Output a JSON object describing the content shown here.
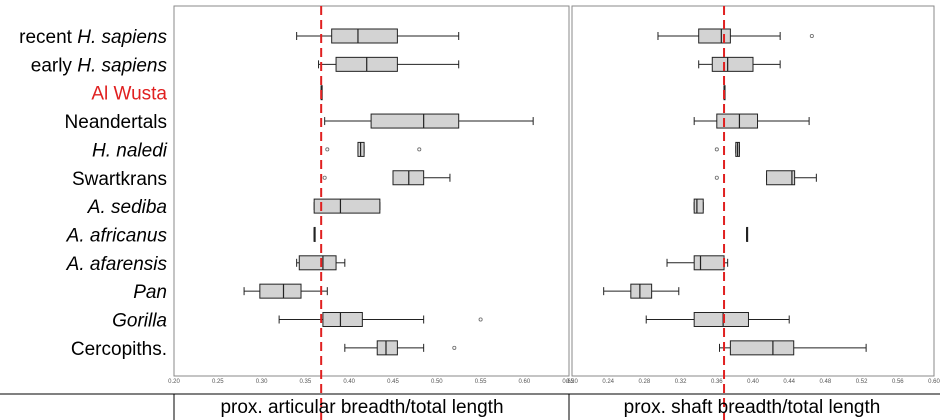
{
  "groups": [
    {
      "label": "recent H. sapiens",
      "parts": [
        {
          "t": "recent ",
          "i": false
        },
        {
          "t": "H. sapiens",
          "i": true
        }
      ],
      "color": "#000000"
    },
    {
      "label": "early H. sapiens",
      "parts": [
        {
          "t": "early ",
          "i": false
        },
        {
          "t": "H. sapiens",
          "i": true
        }
      ],
      "color": "#000000"
    },
    {
      "label": "Al Wusta",
      "parts": [
        {
          "t": "Al Wusta",
          "i": false
        }
      ],
      "color": "#e02020"
    },
    {
      "label": "Neandertals",
      "parts": [
        {
          "t": "Neandertals",
          "i": false
        }
      ],
      "color": "#000000"
    },
    {
      "label": "H. naledi",
      "parts": [
        {
          "t": "H. naledi",
          "i": true
        }
      ],
      "color": "#000000"
    },
    {
      "label": "Swartkrans",
      "parts": [
        {
          "t": "Swartkrans",
          "i": false
        }
      ],
      "color": "#000000"
    },
    {
      "label": "A. sediba",
      "parts": [
        {
          "t": "A. sediba",
          "i": true
        }
      ],
      "color": "#000000"
    },
    {
      "label": "A. africanus",
      "parts": [
        {
          "t": "A. africanus",
          "i": true
        }
      ],
      "color": "#000000"
    },
    {
      "label": "A. afarensis",
      "parts": [
        {
          "t": "A. afarensis",
          "i": true
        }
      ],
      "color": "#000000"
    },
    {
      "label": "Pan",
      "parts": [
        {
          "t": "Pan",
          "i": true
        }
      ],
      "color": "#000000"
    },
    {
      "label": "Gorilla",
      "parts": [
        {
          "t": "Gorilla",
          "i": true
        }
      ],
      "color": "#000000"
    },
    {
      "label": "Cercopiths.",
      "parts": [
        {
          "t": "Cercopiths.",
          "i": false
        }
      ],
      "color": "#000000"
    }
  ],
  "chart_data": [
    {
      "type": "box",
      "xlabel": "prox. articular breadth/total length",
      "xlim": [
        0.2,
        0.7
      ],
      "ticks": [
        "0.20",
        "0.25",
        "0.30",
        "0.35",
        "0.40",
        "0.45",
        "0.50",
        "0.55",
        "0.60",
        "0.65"
      ],
      "tick_values": [
        0.2,
        0.25,
        0.3,
        0.35,
        0.4,
        0.45,
        0.5,
        0.55,
        0.6,
        0.65
      ],
      "reference_line": {
        "x": 0.368,
        "color": "#e02020",
        "style": "dashed"
      },
      "series": [
        {
          "name": "recent H. sapiens",
          "whislo": 0.34,
          "q1": 0.38,
          "med": 0.41,
          "q3": 0.455,
          "whishi": 0.525,
          "fliers": []
        },
        {
          "name": "early H. sapiens",
          "whislo": 0.365,
          "q1": 0.385,
          "med": 0.42,
          "q3": 0.455,
          "whishi": 0.525,
          "fliers": []
        },
        {
          "name": "Al Wusta",
          "whislo": 0.368,
          "q1": 0.368,
          "med": 0.368,
          "q3": 0.368,
          "whishi": 0.368,
          "fliers": []
        },
        {
          "name": "Neandertals",
          "whislo": 0.372,
          "q1": 0.425,
          "med": 0.485,
          "q3": 0.525,
          "whishi": 0.61,
          "fliers": []
        },
        {
          "name": "H. naledi",
          "whislo": 0.41,
          "q1": 0.41,
          "med": 0.413,
          "q3": 0.417,
          "whishi": 0.417,
          "fliers": [
            0.375,
            0.48
          ]
        },
        {
          "name": "Swartkrans",
          "whislo": 0.45,
          "q1": 0.45,
          "med": 0.468,
          "q3": 0.485,
          "whishi": 0.515,
          "fliers": [
            0.372
          ]
        },
        {
          "name": "A. sediba",
          "whislo": 0.36,
          "q1": 0.36,
          "med": 0.39,
          "q3": 0.435,
          "whishi": 0.435,
          "fliers": []
        },
        {
          "name": "A. africanus",
          "whislo": 0.36,
          "q1": 0.36,
          "med": 0.36,
          "q3": 0.36,
          "whishi": 0.36,
          "fliers": []
        },
        {
          "name": "A. afarensis",
          "whislo": 0.34,
          "q1": 0.343,
          "med": 0.37,
          "q3": 0.385,
          "whishi": 0.395,
          "fliers": []
        },
        {
          "name": "Pan",
          "whislo": 0.28,
          "q1": 0.298,
          "med": 0.325,
          "q3": 0.345,
          "whishi": 0.375,
          "fliers": []
        },
        {
          "name": "Gorilla",
          "whislo": 0.32,
          "q1": 0.37,
          "med": 0.39,
          "q3": 0.415,
          "whishi": 0.485,
          "fliers": [
            0.55
          ]
        },
        {
          "name": "Cercopiths.",
          "whislo": 0.395,
          "q1": 0.432,
          "med": 0.442,
          "q3": 0.455,
          "whishi": 0.485,
          "fliers": [
            0.52
          ]
        }
      ]
    },
    {
      "type": "box",
      "xlabel": "prox. shaft breadth/total length",
      "xlim": [
        0.2,
        0.6
      ],
      "ticks": [
        "0.20",
        "0.24",
        "0.28",
        "0.32",
        "0.36",
        "0.40",
        "0.44",
        "0.48",
        "0.52",
        "0.56",
        "0.60"
      ],
      "tick_values": [
        0.2,
        0.24,
        0.28,
        0.32,
        0.36,
        0.4,
        0.44,
        0.48,
        0.52,
        0.56,
        0.6
      ],
      "reference_line": {
        "x": 0.368,
        "color": "#e02020",
        "style": "dashed"
      },
      "series": [
        {
          "name": "recent H. sapiens",
          "whislo": 0.295,
          "q1": 0.34,
          "med": 0.365,
          "q3": 0.375,
          "whishi": 0.43,
          "fliers": [
            0.465
          ]
        },
        {
          "name": "early H. sapiens",
          "whislo": 0.34,
          "q1": 0.355,
          "med": 0.372,
          "q3": 0.4,
          "whishi": 0.43,
          "fliers": []
        },
        {
          "name": "Al Wusta",
          "whislo": 0.368,
          "q1": 0.368,
          "med": 0.368,
          "q3": 0.368,
          "whishi": 0.368,
          "fliers": []
        },
        {
          "name": "Neandertals",
          "whislo": 0.335,
          "q1": 0.36,
          "med": 0.385,
          "q3": 0.405,
          "whishi": 0.462,
          "fliers": []
        },
        {
          "name": "H. naledi",
          "whislo": 0.381,
          "q1": 0.381,
          "med": 0.383,
          "q3": 0.385,
          "whishi": 0.385,
          "fliers": [
            0.36
          ]
        },
        {
          "name": "Swartkrans",
          "whislo": 0.415,
          "q1": 0.415,
          "med": 0.443,
          "q3": 0.446,
          "whishi": 0.47,
          "fliers": [
            0.36
          ]
        },
        {
          "name": "A. sediba",
          "whislo": 0.335,
          "q1": 0.335,
          "med": 0.338,
          "q3": 0.345,
          "whishi": 0.345,
          "fliers": []
        },
        {
          "name": "A. africanus",
          "whislo": 0.393,
          "q1": 0.393,
          "med": 0.393,
          "q3": 0.393,
          "whishi": 0.393,
          "fliers": []
        },
        {
          "name": "A. afarensis",
          "whislo": 0.305,
          "q1": 0.335,
          "med": 0.342,
          "q3": 0.368,
          "whishi": 0.372,
          "fliers": []
        },
        {
          "name": "Pan",
          "whislo": 0.235,
          "q1": 0.265,
          "med": 0.275,
          "q3": 0.288,
          "whishi": 0.318,
          "fliers": []
        },
        {
          "name": "Gorilla",
          "whislo": 0.282,
          "q1": 0.335,
          "med": 0.367,
          "q3": 0.395,
          "whishi": 0.44,
          "fliers": []
        },
        {
          "name": "Cercopiths.",
          "whislo": 0.363,
          "q1": 0.375,
          "med": 0.422,
          "q3": 0.445,
          "whishi": 0.525,
          "fliers": []
        }
      ]
    }
  ]
}
